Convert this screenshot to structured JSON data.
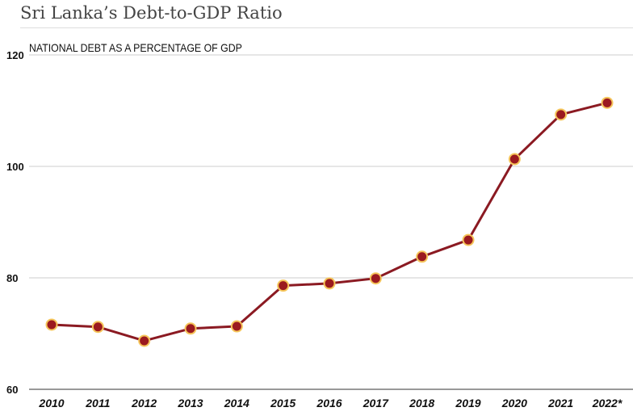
{
  "chart_data": {
    "type": "line",
    "title": "Sri Lanka’s Debt-to-GDP Ratio",
    "subtitle": "NATIONAL DEBT AS A PERCENTAGE OF GDP",
    "xlabel": "",
    "ylabel": "",
    "categories": [
      "2010",
      "2011",
      "2012",
      "2013",
      "2014",
      "2015",
      "2016",
      "2017",
      "2018",
      "2019",
      "2020",
      "2021",
      "2022*"
    ],
    "series": [
      {
        "name": "Debt-to-GDP",
        "values": [
          71.6,
          71.2,
          68.7,
          70.9,
          71.3,
          78.6,
          79.0,
          79.9,
          83.8,
          86.8,
          101.3,
          109.3,
          111.4
        ]
      }
    ],
    "ylim": [
      60,
      120
    ],
    "yticks": [
      "60",
      "80",
      "100",
      "120"
    ],
    "grid": true,
    "colors": {
      "line": "#8b1a22",
      "marker_fill": "#9b1a1f",
      "marker_stroke": "#f5c55a"
    }
  }
}
